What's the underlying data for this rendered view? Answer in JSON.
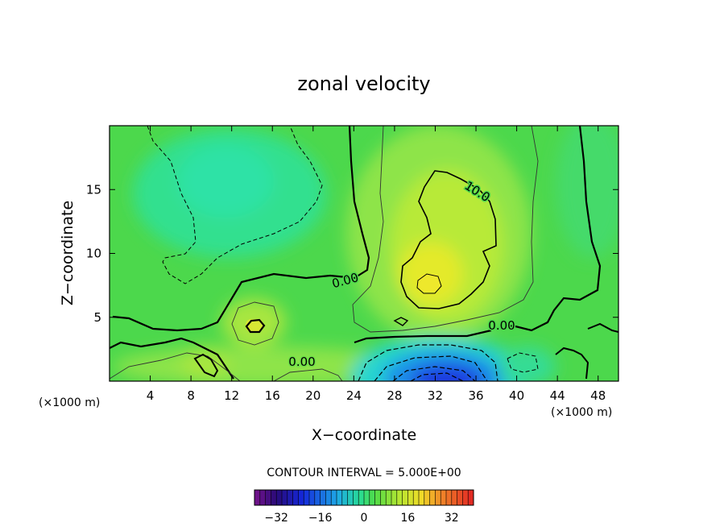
{
  "chart_data": {
    "type": "heatmap",
    "title": "zonal velocity",
    "xlabel": "X−coordinate",
    "ylabel": "Z−coordinate",
    "x_units_left": "(×1000 m)",
    "x_units_right": "(×1000 m)",
    "xlim": [
      0,
      50
    ],
    "ylim": [
      0,
      20
    ],
    "x_ticks": [
      4,
      8,
      12,
      16,
      20,
      24,
      28,
      32,
      36,
      40,
      44,
      48
    ],
    "y_ticks": [
      5,
      10,
      15
    ],
    "contour_interval_text": "CONTOUR INTERVAL = 5.000E+00",
    "contour_labels": [
      {
        "text": "10.0",
        "x": 36.5,
        "z": 14.6
      },
      {
        "text": "0.00",
        "x": 23.3,
        "z": 7.6
      },
      {
        "text": "0.00",
        "x": 38.8,
        "z": 4.3
      },
      {
        "text": "0.00",
        "x": 18.8,
        "z": 1.6
      }
    ],
    "features": [
      {
        "name": "negative jet core",
        "x": 33,
        "z": 0.5,
        "value": -20
      },
      {
        "name": "weak negative region",
        "x": 12,
        "z": 15,
        "value": -4
      },
      {
        "name": "positive maximum",
        "x": 31,
        "z": 7.5,
        "value": 15
      },
      {
        "name": "small positive cell",
        "x": 14,
        "z": 4.3,
        "value": 10
      }
    ],
    "colorbar": {
      "range": [
        -40,
        40
      ],
      "ticks": [
        -32,
        -16,
        0,
        16,
        32
      ],
      "tick_labels": [
        "−32",
        "−16",
        "0",
        "16",
        "32"
      ]
    }
  }
}
